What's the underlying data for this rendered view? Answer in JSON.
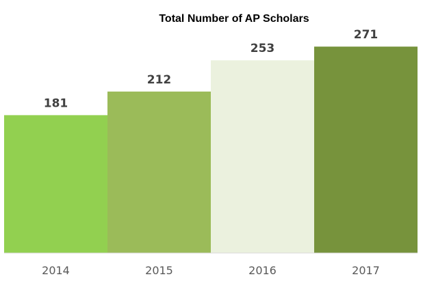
{
  "chart_data": {
    "type": "bar",
    "title": "Total Number of AP Scholars",
    "xlabel": "",
    "ylabel": "",
    "categories": [
      "2014",
      "2015",
      "2016",
      "2017"
    ],
    "values": [
      181,
      212,
      253,
      271
    ],
    "data_labels": [
      "181",
      "212",
      "253",
      "271"
    ],
    "ylim": [
      0,
      290
    ],
    "grid": false,
    "legend": "none",
    "colors": [
      "#92d050",
      "#9bbb59",
      "#ebf1de",
      "#77933c"
    ]
  }
}
